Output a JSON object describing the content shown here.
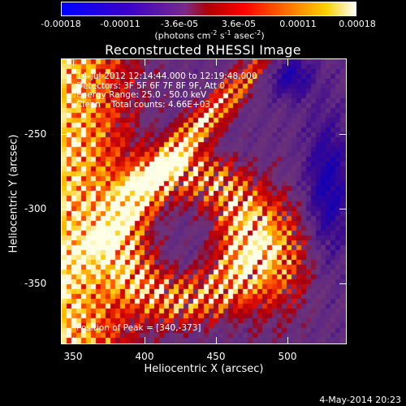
{
  "colorbar": {
    "ticks": [
      "-0.00018",
      "-0.00011",
      "-3.6e-05",
      "3.6e-05",
      "0.00011",
      "0.00018"
    ],
    "units_main": "(photons cm",
    "units_e1": "-2",
    "units_s": " s",
    "units_e2": "-1",
    "units_asec": " asec",
    "units_e3": "-2",
    "units_close": ")"
  },
  "title": "Reconstructed RHESSI Image",
  "info": {
    "time_range": "14-Jul-2012 12:14:44.000 to 12:19:48.000",
    "detectors": "Detectors: 3F 5F 6F 7F 8F 9F, Att 0",
    "energy": "Energy Range: 25.0 - 50.0 keV",
    "method": "Clean    Total counts: 4.66E+03"
  },
  "peak": "Position of Peak = [340,-373]",
  "chart_data": {
    "type": "heatmap",
    "title": "Reconstructed RHESSI Image",
    "xlabel": "Heliocentric X (arcsec)",
    "ylabel": "Heliocentric Y (arcsec)",
    "xlim": [
      335,
      535
    ],
    "ylim": [
      -393,
      -212
    ],
    "xticks": [
      "350",
      "400",
      "450",
      "500"
    ],
    "yticks": [
      "-250",
      "-300",
      "-350"
    ],
    "colorbar_range": [
      -0.00018,
      0.00018
    ],
    "colormap": "blue-purple-red-orange-yellow-white",
    "peak_position": [
      340,
      -373
    ]
  },
  "footer_date": "4-May-2014 20:23"
}
